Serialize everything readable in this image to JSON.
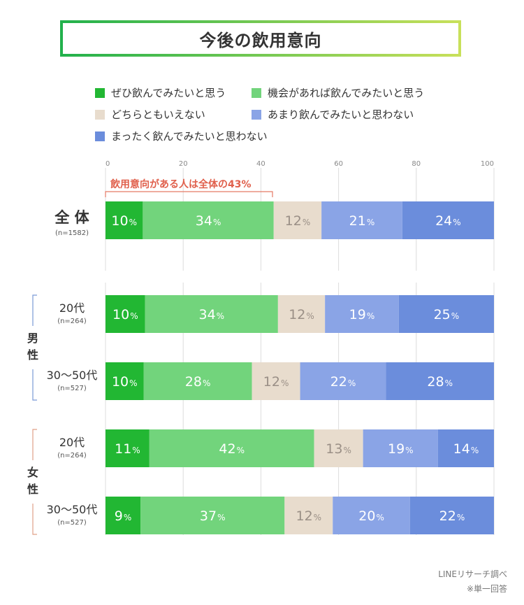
{
  "title": "今後の飲用意向",
  "legend": [
    {
      "label": "ぜひ飲んでみたいと思う",
      "color": "#22b733"
    },
    {
      "label": "機会があれば飲んでみたいと思う",
      "color": "#72d47c"
    },
    {
      "label": "どちらともいえない",
      "color": "#e8dccd"
    },
    {
      "label": "あまり飲んでみたいと思わない",
      "color": "#8aa4e6"
    },
    {
      "label": "まったく飲んでみたいと思わない",
      "color": "#6b8ddc"
    }
  ],
  "annotation": "飲用意向がある人は全体の43%",
  "chart_data": {
    "type": "bar",
    "orientation": "horizontal-stacked",
    "axis_ticks": [
      "0",
      "20",
      "40",
      "60",
      "80",
      "100"
    ],
    "xlim": [
      0,
      100
    ],
    "grid": true,
    "series_names": [
      "ぜひ飲んでみたいと思う",
      "機会があれば飲んでみたいと思う",
      "どちらともいえない",
      "あまり飲んでみたいと思わない",
      "まったく飲んでみたいと思わない"
    ],
    "rows": [
      {
        "label": "全 体",
        "n": "(n=1582)",
        "values": [
          10,
          34,
          12,
          21,
          24
        ],
        "shares": [
          9.6,
          33.7,
          12.3,
          20.8,
          23.6
        ]
      },
      {
        "label": "20代",
        "n": "(n=264)",
        "values": [
          10,
          34,
          12,
          19,
          25
        ],
        "shares": [
          10.2,
          34.2,
          12.1,
          19.0,
          24.5
        ]
      },
      {
        "label": "30〜50代",
        "n": "(n=527)",
        "values": [
          10,
          28,
          12,
          22,
          28
        ],
        "shares": [
          9.8,
          27.9,
          12.4,
          22.1,
          27.8
        ]
      },
      {
        "label": "20代",
        "n": "(n=264)",
        "values": [
          11,
          42,
          13,
          19,
          14
        ],
        "shares": [
          11.3,
          42.4,
          12.6,
          19.3,
          14.4
        ]
      },
      {
        "label": "30〜50代",
        "n": "(n=527)",
        "values": [
          9,
          37,
          12,
          20,
          22
        ],
        "shares": [
          9.0,
          37.1,
          12.4,
          19.9,
          21.6
        ]
      }
    ],
    "value_suffix": "%"
  },
  "groups": [
    {
      "label_top": "男",
      "label_bottom": "性",
      "color": "#7a9ad6"
    },
    {
      "label_top": "女",
      "label_bottom": "性",
      "color": "#e0a088"
    }
  ],
  "footer": {
    "source": "LINEリサーチ調べ",
    "note": "※単一回答"
  }
}
